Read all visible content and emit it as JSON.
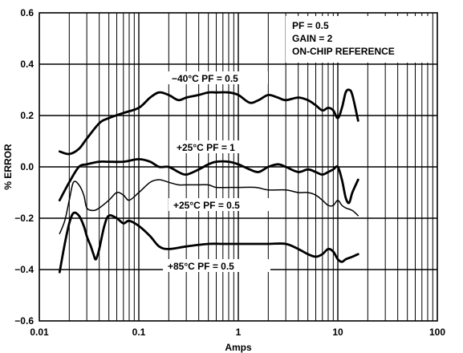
{
  "chart_data": {
    "type": "line",
    "xlabel": "Amps",
    "ylabel": "% ERROR",
    "x_scale": "log",
    "xlim": [
      0.01,
      100
    ],
    "ylim": [
      -0.6,
      0.6
    ],
    "x_tick_labels": [
      "0.01",
      "0.1",
      "1",
      "10",
      "100"
    ],
    "y_tick_labels": [
      "0.6",
      "0.4",
      "0.2",
      "0.0",
      "−0.2",
      "−0.4",
      "−0.6"
    ],
    "grid": true,
    "annotations": [
      "PF = 0.5",
      "GAIN = 2",
      "ON-CHIP REFERENCE"
    ],
    "series": [
      {
        "name": "−40°C  PF = 0.5",
        "stroke": "thick",
        "x": [
          0.016,
          0.02,
          0.025,
          0.03,
          0.04,
          0.05,
          0.07,
          0.1,
          0.13,
          0.16,
          0.2,
          0.25,
          0.3,
          0.4,
          0.5,
          0.6,
          0.8,
          1.0,
          1.3,
          1.6,
          2.0,
          2.5,
          3.0,
          4.0,
          5.0,
          6.0,
          7.0,
          8.0,
          9.0,
          10.0,
          11.0,
          12.0,
          13.0,
          14.0,
          16.0
        ],
        "y": [
          0.06,
          0.05,
          0.07,
          0.11,
          0.17,
          0.19,
          0.21,
          0.23,
          0.27,
          0.29,
          0.28,
          0.26,
          0.27,
          0.28,
          0.29,
          0.29,
          0.29,
          0.28,
          0.25,
          0.26,
          0.28,
          0.27,
          0.26,
          0.27,
          0.26,
          0.24,
          0.22,
          0.23,
          0.22,
          0.19,
          0.23,
          0.29,
          0.3,
          0.28,
          0.18
        ]
      },
      {
        "name": "+25°C  PF = 1",
        "stroke": "thick",
        "x": [
          0.016,
          0.02,
          0.025,
          0.03,
          0.04,
          0.05,
          0.07,
          0.1,
          0.13,
          0.16,
          0.2,
          0.25,
          0.3,
          0.4,
          0.5,
          0.6,
          0.8,
          1.0,
          1.3,
          1.6,
          2.0,
          2.5,
          3.0,
          4.0,
          5.0,
          6.0,
          7.0,
          8.0,
          9.0,
          10.0,
          11.0,
          12.0,
          13.0,
          14.0,
          16.0
        ],
        "y": [
          -0.13,
          -0.06,
          0.0,
          0.01,
          0.02,
          0.02,
          0.02,
          0.03,
          0.02,
          0.0,
          0.0,
          -0.02,
          -0.03,
          -0.01,
          0.01,
          0.02,
          0.02,
          0.01,
          -0.01,
          -0.02,
          0.0,
          0.01,
          0.0,
          -0.02,
          -0.01,
          -0.02,
          -0.03,
          -0.02,
          -0.01,
          0.0,
          -0.05,
          -0.12,
          -0.14,
          -0.1,
          -0.05
        ]
      },
      {
        "name": "+25°C  PF = 0.5",
        "stroke": "thin",
        "x": [
          0.016,
          0.018,
          0.02,
          0.022,
          0.025,
          0.028,
          0.03,
          0.035,
          0.04,
          0.05,
          0.06,
          0.07,
          0.08,
          0.1,
          0.13,
          0.16,
          0.2,
          0.25,
          0.3,
          0.4,
          0.5,
          0.6,
          0.8,
          1.0,
          1.5,
          2.0,
          3.0,
          4.0,
          5.0,
          6.0,
          7.0,
          8.0,
          9.0,
          10.0,
          11.0,
          12.0,
          14.0,
          16.0
        ],
        "y": [
          -0.26,
          -0.21,
          -0.13,
          -0.06,
          -0.07,
          -0.11,
          -0.16,
          -0.17,
          -0.16,
          -0.13,
          -0.1,
          -0.11,
          -0.13,
          -0.1,
          -0.06,
          -0.05,
          -0.06,
          -0.07,
          -0.07,
          -0.07,
          -0.07,
          -0.08,
          -0.08,
          -0.08,
          -0.08,
          -0.09,
          -0.09,
          -0.1,
          -0.1,
          -0.11,
          -0.13,
          -0.15,
          -0.15,
          -0.13,
          -0.15,
          -0.16,
          -0.17,
          -0.19
        ]
      },
      {
        "name": "+85°C  PF = 0.5",
        "stroke": "thick",
        "x": [
          0.016,
          0.018,
          0.02,
          0.022,
          0.025,
          0.028,
          0.03,
          0.033,
          0.035,
          0.037,
          0.04,
          0.045,
          0.05,
          0.06,
          0.07,
          0.08,
          0.1,
          0.13,
          0.16,
          0.2,
          0.3,
          0.5,
          0.7,
          1.0,
          1.5,
          2.0,
          3.0,
          4.0,
          5.0,
          6.0,
          7.0,
          8.0,
          9.0,
          10.0,
          11.0,
          12.0,
          14.0,
          16.0
        ],
        "y": [
          -0.41,
          -0.3,
          -0.22,
          -0.18,
          -0.19,
          -0.23,
          -0.27,
          -0.31,
          -0.34,
          -0.36,
          -0.32,
          -0.23,
          -0.19,
          -0.2,
          -0.22,
          -0.21,
          -0.23,
          -0.27,
          -0.31,
          -0.32,
          -0.31,
          -0.3,
          -0.3,
          -0.3,
          -0.3,
          -0.3,
          -0.3,
          -0.32,
          -0.34,
          -0.35,
          -0.34,
          -0.32,
          -0.33,
          -0.36,
          -0.37,
          -0.36,
          -0.35,
          -0.34
        ]
      }
    ]
  }
}
